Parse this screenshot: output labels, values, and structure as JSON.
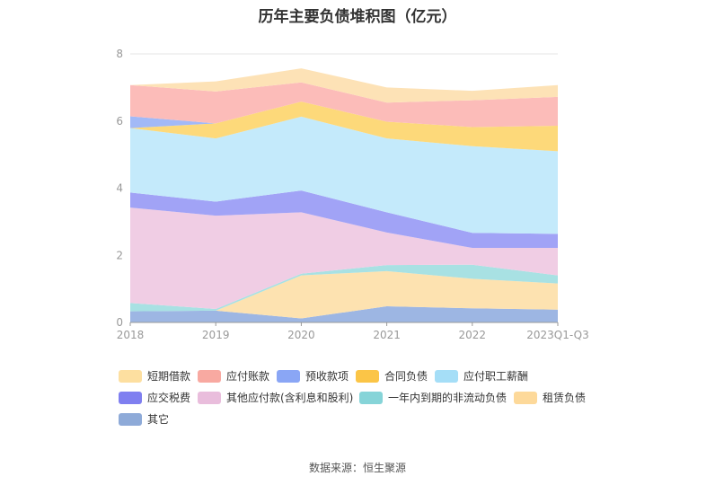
{
  "chart_data": {
    "type": "area",
    "title": "历年主要负债堆积图（亿元）",
    "categories": [
      "2018",
      "2019",
      "2020",
      "2021",
      "2022",
      "2023Q1-Q3"
    ],
    "yticks": [
      "0",
      "2",
      "4",
      "6",
      "8"
    ],
    "ylim": [
      0,
      8
    ],
    "series": [
      {
        "name": "其它",
        "color": "#9db6e3",
        "values": [
          0.33,
          0.35,
          0.12,
          0.48,
          0.42,
          0.38
        ]
      },
      {
        "name": "租赁负债",
        "color": "#fde2b0",
        "values": [
          0.0,
          0.0,
          1.28,
          1.05,
          0.88,
          0.78
        ]
      },
      {
        "name": "一年内到期的非流动负债",
        "color": "#a8e1e3",
        "values": [
          0.25,
          0.05,
          0.05,
          0.18,
          0.42,
          0.24
        ]
      },
      {
        "name": "其他应付款(含利息和股利)",
        "color": "#f0cde4",
        "values": [
          2.84,
          2.78,
          1.83,
          0.97,
          0.5,
          0.82
        ]
      },
      {
        "name": "应交税费",
        "color": "#a1a3f6",
        "values": [
          0.45,
          0.42,
          0.65,
          0.6,
          0.45,
          0.42
        ]
      },
      {
        "name": "应付职工薪酬",
        "color": "#c4eafb",
        "values": [
          1.92,
          1.88,
          2.2,
          2.2,
          2.58,
          2.46
        ]
      },
      {
        "name": "合同负债",
        "color": "#fdd97a",
        "values": [
          0.0,
          0.45,
          0.45,
          0.5,
          0.57,
          0.76
        ]
      },
      {
        "name": "预收款项",
        "color": "#a2b9f7",
        "values": [
          0.35,
          0.0,
          0.0,
          0.0,
          0.0,
          0.0
        ]
      },
      {
        "name": "应付账款",
        "color": "#fcbcb9",
        "values": [
          0.93,
          0.95,
          0.57,
          0.57,
          0.8,
          0.86
        ]
      },
      {
        "name": "短期借款",
        "color": "#fde2b6",
        "values": [
          0.0,
          0.3,
          0.42,
          0.45,
          0.28,
          0.35
        ]
      }
    ],
    "legend": [
      {
        "name": "短期借款",
        "color": "#fddfa0"
      },
      {
        "name": "应付账款",
        "color": "#f8a9a1"
      },
      {
        "name": "预收款项",
        "color": "#8aa6f5"
      },
      {
        "name": "合同负债",
        "color": "#fbc547"
      },
      {
        "name": "应付职工薪酬",
        "color": "#a5def7"
      },
      {
        "name": "应交税费",
        "color": "#7f7ff0"
      },
      {
        "name": "其他应付款(含利息和股利)",
        "color": "#e9bddc"
      },
      {
        "name": "一年内到期的非流动负债",
        "color": "#86d4d8"
      },
      {
        "name": "租赁负债",
        "color": "#fdd99a"
      },
      {
        "name": "其它",
        "color": "#8eaad8"
      }
    ],
    "legend_placement": "bottom",
    "grid": true
  },
  "source_label": "数据来源：恒生聚源"
}
